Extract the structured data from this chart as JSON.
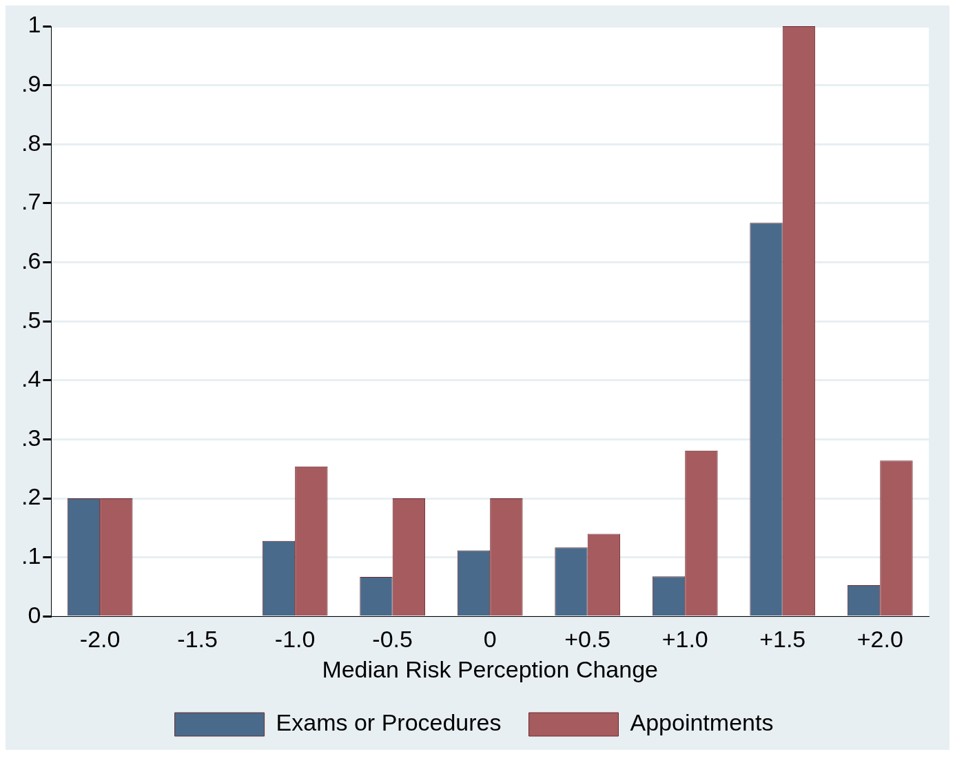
{
  "chart_data": {
    "type": "bar",
    "xlabel": "Median Risk Perception Change",
    "categories": [
      "-2.0",
      "-1.5",
      "-1.0",
      "-0.5",
      "0",
      "+0.5",
      "+1.0",
      "+1.5",
      "+2.0"
    ],
    "series": [
      {
        "name": "Exams or Procedures",
        "color": "#496a8b",
        "values": [
          0.2,
          0,
          0.128,
          0.067,
          0.112,
          0.117,
          0.068,
          0.667,
          0.053
        ]
      },
      {
        "name": "Appointments",
        "color": "#a65b5f",
        "values": [
          0.2,
          0,
          0.254,
          0.2,
          0.2,
          0.14,
          0.281,
          1,
          0.264
        ]
      }
    ],
    "ylim": [
      0,
      1
    ],
    "yticks": [
      0,
      {
        "value": 0.1,
        "label": ".1"
      },
      {
        "value": 0.2,
        "label": ".2"
      },
      {
        "value": 0.3,
        "label": ".3"
      },
      {
        "value": 0.4,
        "label": ".4"
      },
      {
        "value": 0.5,
        "label": ".5"
      },
      {
        "value": 0.6,
        "label": ".6"
      },
      {
        "value": 0.7,
        "label": ".7"
      },
      {
        "value": 0.8,
        "label": ".8"
      },
      {
        "value": 0.9,
        "label": ".9"
      },
      1
    ],
    "grid": "y",
    "legend": "bottom"
  }
}
